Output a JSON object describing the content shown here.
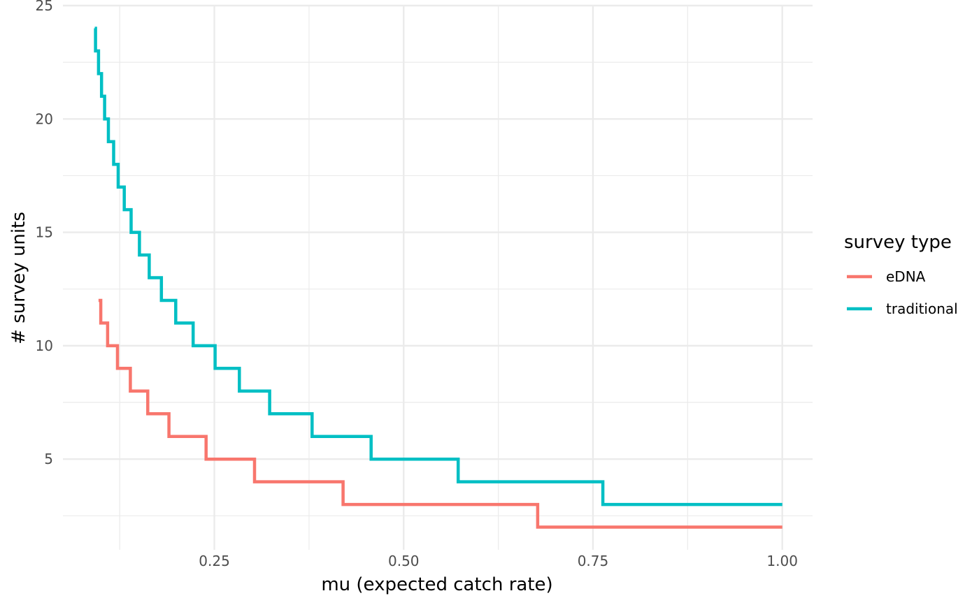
{
  "chart_data": {
    "type": "line",
    "step": true,
    "xlabel": "mu (expected catch rate)",
    "ylabel": "# survey units",
    "xlim": [
      0.05,
      1.04
    ],
    "ylim": [
      1.0,
      25.0
    ],
    "x_ticks": [
      0.25,
      0.5,
      0.75,
      1.0
    ],
    "x_tick_labels": [
      "0.25",
      "0.50",
      "0.75",
      "1.00"
    ],
    "y_ticks": [
      5,
      10,
      15,
      20,
      25
    ],
    "y_tick_labels": [
      "5",
      "10",
      "15",
      "20",
      "25"
    ],
    "grid": true,
    "legend": {
      "title": "survey type",
      "position": "right"
    },
    "series": [
      {
        "name": "eDNA",
        "color": "#F8766D",
        "points": [
          [
            0.097,
            12
          ],
          [
            0.1,
            11
          ],
          [
            0.109,
            10
          ],
          [
            0.122,
            9
          ],
          [
            0.139,
            8
          ],
          [
            0.162,
            7
          ],
          [
            0.19,
            6
          ],
          [
            0.239,
            5
          ],
          [
            0.303,
            4
          ],
          [
            0.42,
            3
          ],
          [
            0.677,
            2
          ],
          [
            1.0,
            2
          ]
        ]
      },
      {
        "name": "traditional",
        "color": "#00BFC4",
        "points": [
          [
            0.092,
            24
          ],
          [
            0.093,
            23
          ],
          [
            0.097,
            22
          ],
          [
            0.101,
            21
          ],
          [
            0.105,
            20
          ],
          [
            0.11,
            19
          ],
          [
            0.117,
            18
          ],
          [
            0.123,
            17
          ],
          [
            0.131,
            16
          ],
          [
            0.14,
            15
          ],
          [
            0.151,
            14
          ],
          [
            0.164,
            13
          ],
          [
            0.18,
            12
          ],
          [
            0.199,
            11
          ],
          [
            0.222,
            10
          ],
          [
            0.251,
            9
          ],
          [
            0.283,
            8
          ],
          [
            0.323,
            7
          ],
          [
            0.379,
            6
          ],
          [
            0.457,
            5
          ],
          [
            0.572,
            4
          ],
          [
            0.763,
            3
          ],
          [
            1.0,
            3
          ]
        ]
      }
    ]
  }
}
